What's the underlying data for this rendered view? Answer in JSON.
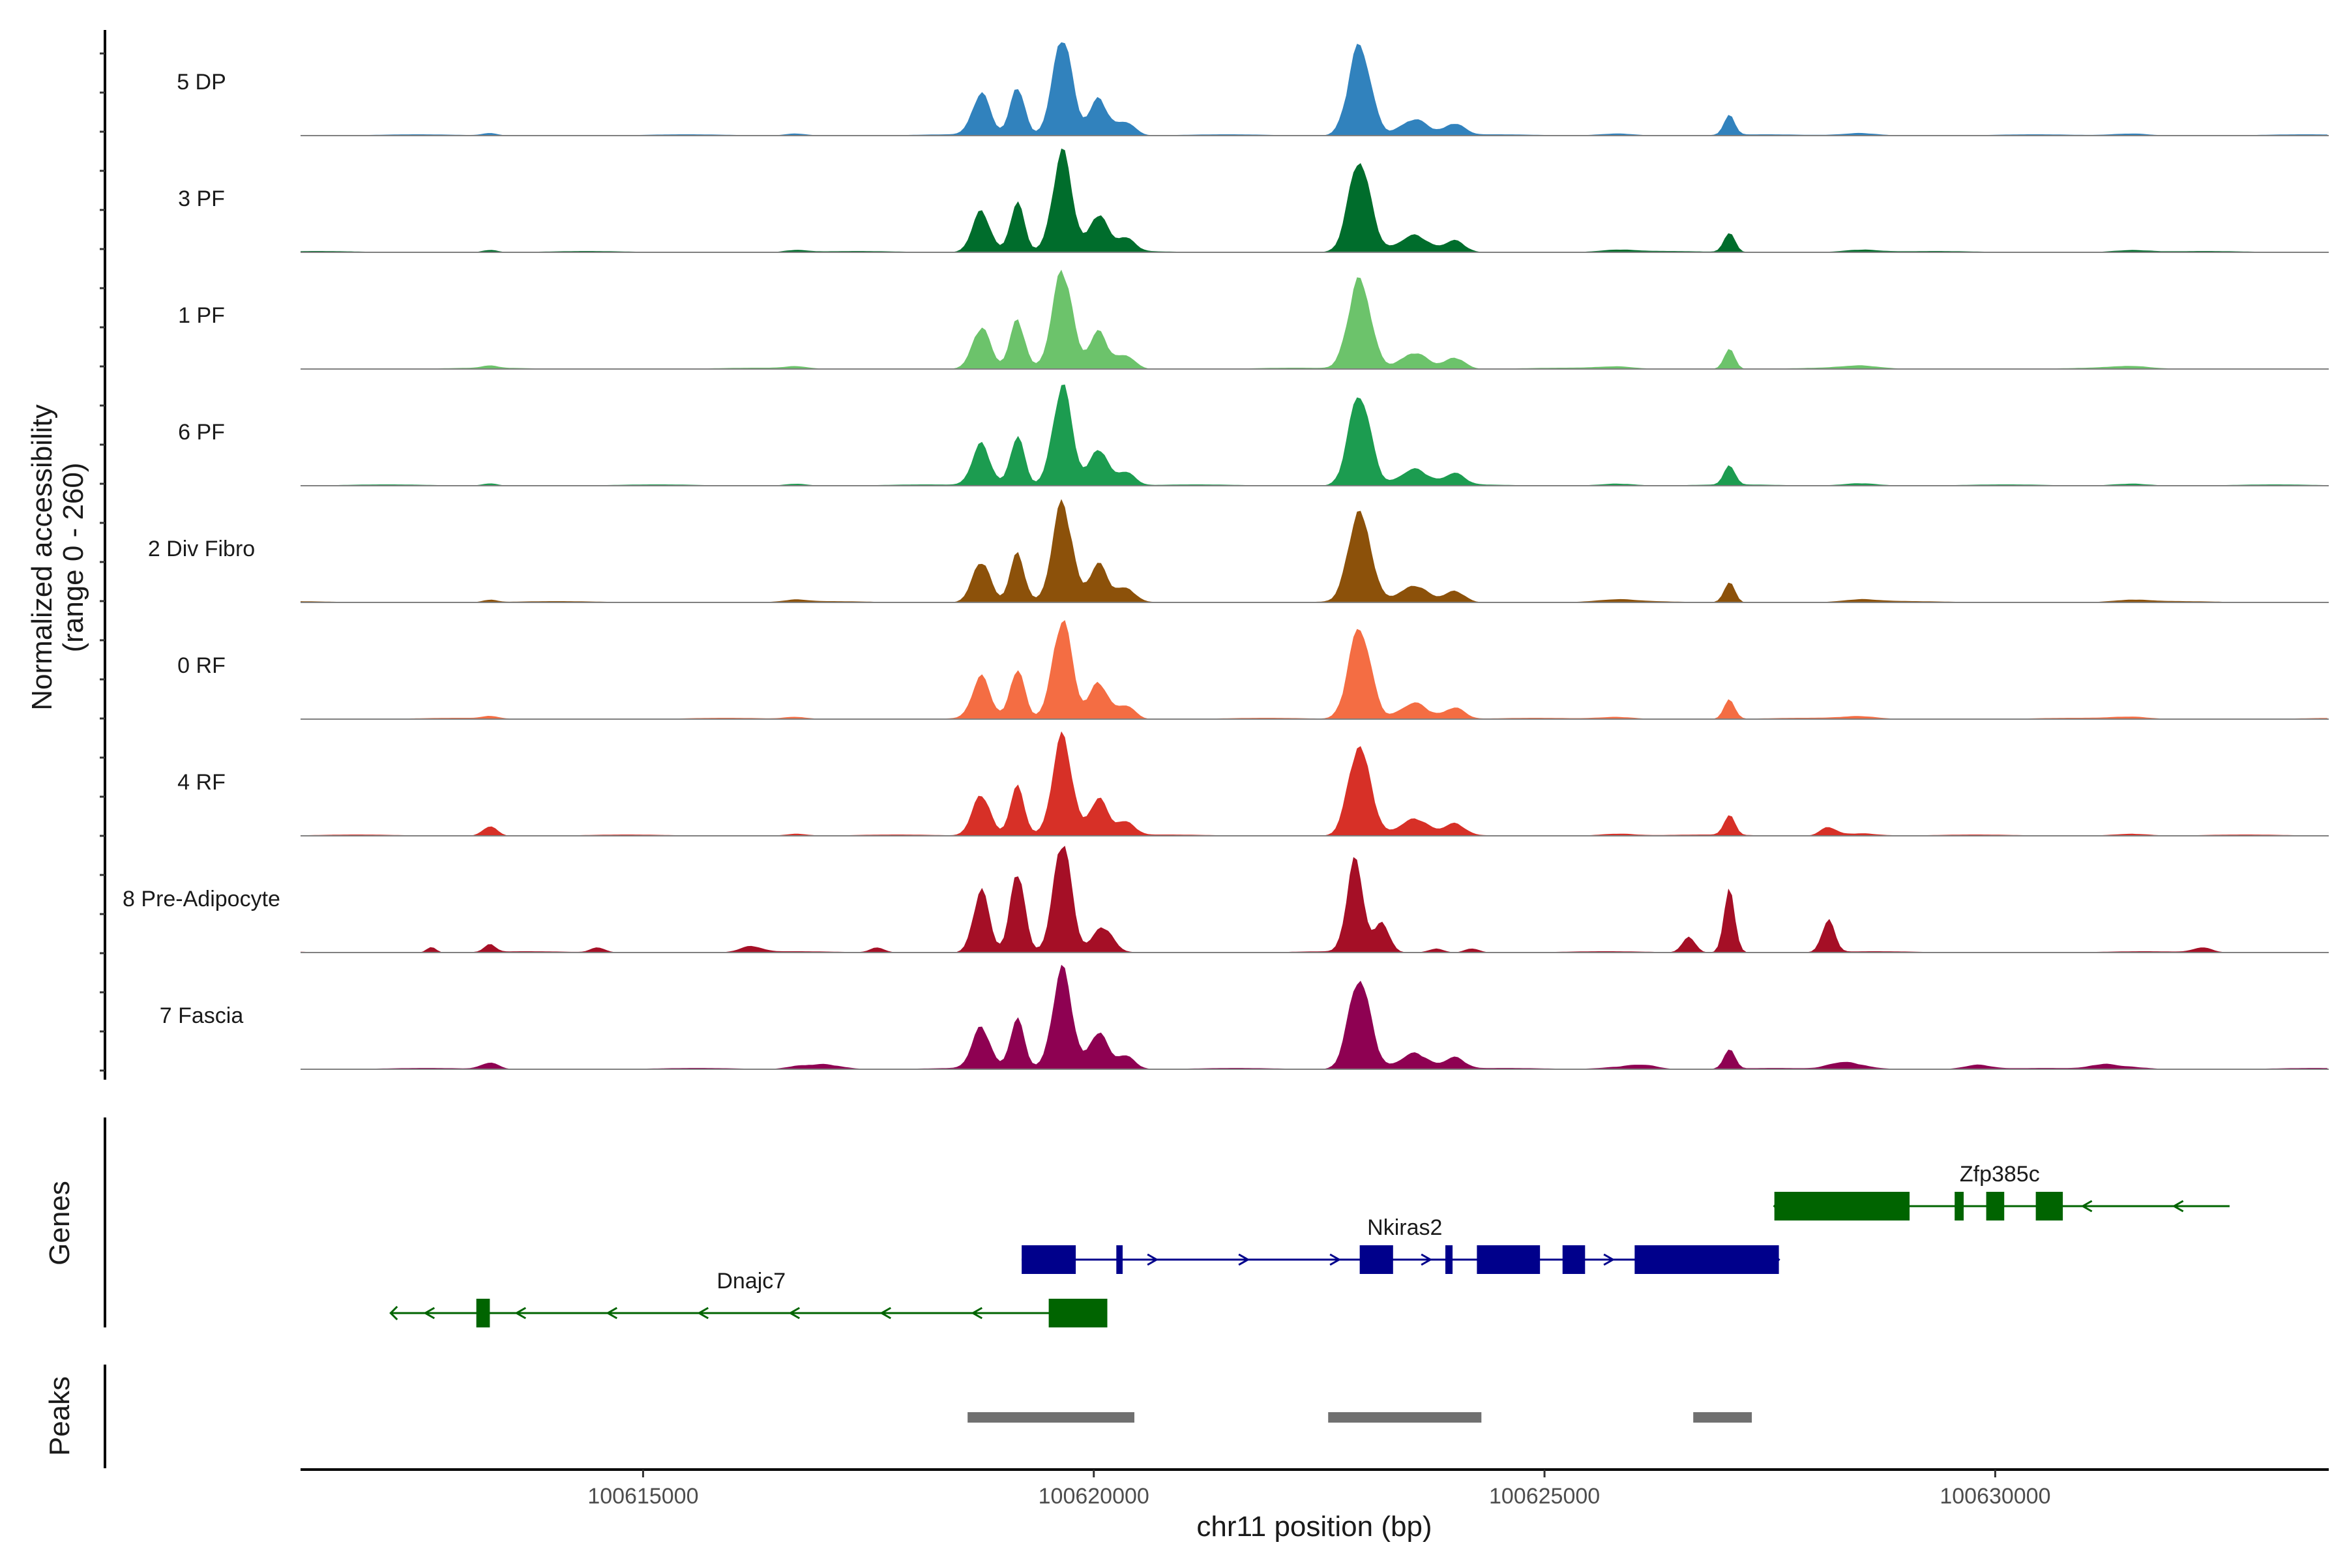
{
  "chart_data": {
    "type": "area",
    "title": "",
    "chromosome": "chr11",
    "xlabel": "chr11 position (bp)",
    "ylabel_line1": "Normalized accessibility",
    "ylabel_line2": "(range 0 - 260)",
    "y_range": [
      0,
      260
    ],
    "xlim": [
      100611200,
      100633700
    ],
    "x_ticks": [
      100615000,
      100620000,
      100625000,
      100630000
    ],
    "x_tick_labels": [
      "100615000",
      "100620000",
      "100625000",
      "100630000"
    ],
    "tracks": [
      {
        "name": "5 DP",
        "color": "#3182BD",
        "profile": "base"
      },
      {
        "name": "3 PF",
        "color": "#006D2C",
        "profile": "base"
      },
      {
        "name": "1 PF",
        "color": "#6CC36B",
        "profile": "base"
      },
      {
        "name": "6 PF",
        "color": "#1C9C50",
        "profile": "base"
      },
      {
        "name": "2 Div Fibro",
        "color": "#8C510A",
        "profile": "base"
      },
      {
        "name": "0 RF",
        "color": "#F46D43",
        "profile": "base"
      },
      {
        "name": "4 RF",
        "color": "#D73027",
        "profile": "rf4"
      },
      {
        "name": "8 Pre-Adipocyte",
        "color": "#A50F26",
        "profile": "adipo"
      },
      {
        "name": "7 Fascia",
        "color": "#8E0152",
        "profile": "fascia"
      }
    ],
    "genes_panel_label": "Genes",
    "genes": [
      {
        "name": "Zfp385c",
        "strand": "-",
        "start": 100627550,
        "end": 100632600,
        "color": "#006400",
        "row": 0,
        "exons": [
          [
            100627550,
            100629050
          ],
          [
            100629550,
            100629650
          ],
          [
            100629900,
            100630100
          ],
          [
            100630450,
            100630750
          ]
        ]
      },
      {
        "name": "Nkiras2",
        "strand": "+",
        "start": 100619200,
        "end": 100627600,
        "color": "#00008B",
        "row": 1,
        "exons": [
          [
            100619200,
            100619800
          ],
          [
            100620250,
            100620320
          ],
          [
            100622950,
            100623320
          ],
          [
            100623900,
            100623980
          ],
          [
            100624250,
            100624950
          ],
          [
            100625200,
            100625450
          ],
          [
            100626000,
            100627600
          ]
        ]
      },
      {
        "name": "Dnajc7",
        "strand": "-",
        "start": 100612200,
        "end": 100620150,
        "color": "#006400",
        "row": 2,
        "exons": [
          [
            100613150,
            100613300
          ],
          [
            100619500,
            100620150
          ]
        ]
      }
    ],
    "peaks_panel_label": "Peaks",
    "peaks": [
      [
        100618600,
        100620450
      ],
      [
        100622600,
        100624300
      ],
      [
        100626650,
        100627300
      ]
    ]
  }
}
